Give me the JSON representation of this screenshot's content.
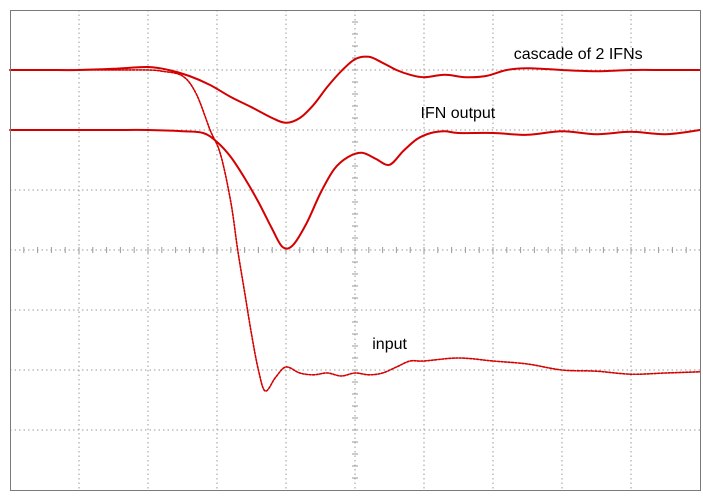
{
  "chart_data": {
    "type": "line",
    "title": "",
    "xlabel": "",
    "ylabel": "",
    "grid": true,
    "divisions": {
      "x": 10,
      "y": 8
    },
    "xlim": [
      0,
      10
    ],
    "ylim": [
      0,
      8
    ],
    "trace_color": "#d40000",
    "series": [
      {
        "name": "cascade of 2 IFNs",
        "x": [
          0,
          0.5,
          1.0,
          1.5,
          2.0,
          2.3,
          2.6,
          2.9,
          3.2,
          3.5,
          3.8,
          4.0,
          4.2,
          4.4,
          4.6,
          4.8,
          5.0,
          5.2,
          5.4,
          5.6,
          5.8,
          6.0,
          6.3,
          6.6,
          6.9,
          7.2,
          7.5,
          8.0,
          8.5,
          9.0,
          9.5,
          10.0
        ],
        "y": [
          7.0,
          7.0,
          7.0,
          7.02,
          7.05,
          7.0,
          6.9,
          6.75,
          6.55,
          6.38,
          6.2,
          6.12,
          6.2,
          6.42,
          6.72,
          6.98,
          7.18,
          7.22,
          7.12,
          7.0,
          6.92,
          6.88,
          6.92,
          6.88,
          6.9,
          7.0,
          7.03,
          7.0,
          6.98,
          7.0,
          7.0,
          7.0
        ]
      },
      {
        "name": "IFN output",
        "x": [
          0,
          0.5,
          1.0,
          1.5,
          2.0,
          2.5,
          2.8,
          3.0,
          3.2,
          3.4,
          3.6,
          3.8,
          3.95,
          4.1,
          4.3,
          4.5,
          4.7,
          4.9,
          5.1,
          5.3,
          5.5,
          5.7,
          5.9,
          6.1,
          6.3,
          6.5,
          7.0,
          7.5,
          8.0,
          8.5,
          9.0,
          9.5,
          10.0
        ],
        "y": [
          6.0,
          6.0,
          6.0,
          6.0,
          6.0,
          5.98,
          5.95,
          5.8,
          5.55,
          5.2,
          4.8,
          4.35,
          4.05,
          4.08,
          4.45,
          4.95,
          5.35,
          5.55,
          5.62,
          5.52,
          5.42,
          5.65,
          5.85,
          5.95,
          5.98,
          5.95,
          5.95,
          5.92,
          5.98,
          5.93,
          5.97,
          5.93,
          6.0
        ]
      },
      {
        "name": "input",
        "x": [
          0,
          0.5,
          1.0,
          1.5,
          2.0,
          2.2,
          2.5,
          2.7,
          2.9,
          3.05,
          3.2,
          3.3,
          3.4,
          3.5,
          3.6,
          3.7,
          3.85,
          4.0,
          4.2,
          4.4,
          4.6,
          4.8,
          5.0,
          5.2,
          5.4,
          5.6,
          5.8,
          6.0,
          6.5,
          7.0,
          7.5,
          8.0,
          8.5,
          9.0,
          9.5,
          10.0
        ],
        "y": [
          7.0,
          7.0,
          7.0,
          7.0,
          7.0,
          6.98,
          6.9,
          6.6,
          6.0,
          5.6,
          4.8,
          4.0,
          3.3,
          2.6,
          2.0,
          1.65,
          1.88,
          2.05,
          1.95,
          1.92,
          1.95,
          1.9,
          1.95,
          1.92,
          1.95,
          2.05,
          2.15,
          2.15,
          2.2,
          2.15,
          2.1,
          2.0,
          1.98,
          1.93,
          1.95,
          1.97
        ]
      }
    ],
    "annotations": [
      {
        "text": "cascade of 2 IFNs",
        "x": 7.3,
        "y": 7.18
      },
      {
        "text": "IFN output",
        "x": 5.95,
        "y": 6.2
      },
      {
        "text": "input",
        "x": 5.25,
        "y": 2.35
      }
    ]
  }
}
